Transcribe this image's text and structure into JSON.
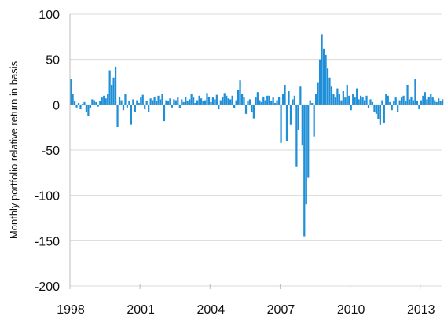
{
  "chart_data": {
    "type": "bar",
    "title": "",
    "xlabel": "",
    "ylabel": "Monthly portfolio relative return in basis",
    "ylim": [
      -200,
      100
    ],
    "yticks": [
      100,
      50,
      0,
      -50,
      -100,
      -150,
      -200
    ],
    "ytick_labels": [
      "100",
      "50",
      "0",
      "-50",
      "-100",
      "-150",
      "-200"
    ],
    "xlim": [
      1998.0,
      2013.95
    ],
    "xticks": [
      1998,
      2001,
      2004,
      2007,
      2010,
      2013
    ],
    "xtick_labels": [
      "1998",
      "2001",
      "2004",
      "2007",
      "2010",
      "2013"
    ],
    "grid": "horizontal",
    "legend": "none",
    "series": [
      {
        "color": "#1f8fd8",
        "start": "1998-01",
        "frequency": "monthly",
        "values": [
          28,
          12,
          4,
          -3,
          2,
          -5,
          1,
          3,
          -8,
          -12,
          -4,
          6,
          5,
          3,
          -2,
          4,
          8,
          10,
          7,
          12,
          38,
          22,
          30,
          42,
          -24,
          9,
          5,
          -6,
          12,
          -3,
          4,
          -22,
          6,
          -8,
          5,
          2,
          8,
          11,
          -5,
          4,
          -8,
          7,
          5,
          9,
          4,
          10,
          6,
          12,
          -18,
          5,
          4,
          7,
          -3,
          6,
          5,
          8,
          -4,
          6,
          3,
          9,
          4,
          6,
          12,
          8,
          2,
          5,
          10,
          7,
          4,
          5,
          13,
          9,
          3,
          8,
          6,
          11,
          -5,
          5,
          9,
          13,
          10,
          7,
          6,
          10,
          -4,
          5,
          16,
          27,
          12,
          8,
          -10,
          4,
          6,
          -8,
          -15,
          8,
          14,
          5,
          3,
          9,
          5,
          10,
          10,
          4,
          8,
          2,
          5,
          9,
          -42,
          12,
          22,
          -40,
          15,
          -22,
          6,
          10,
          -68,
          -28,
          20,
          -45,
          -145,
          -110,
          -80,
          5,
          2,
          -35,
          12,
          25,
          50,
          78,
          62,
          55,
          40,
          30,
          20,
          12,
          8,
          18,
          12,
          5,
          15,
          8,
          22,
          10,
          -6,
          12,
          8,
          18,
          6,
          10,
          8,
          5,
          10,
          -4,
          6,
          3,
          -8,
          -10,
          -16,
          -22,
          5,
          -20,
          12,
          10,
          3,
          -6,
          4,
          8,
          -8,
          5,
          8,
          10,
          4,
          22,
          6,
          9,
          5,
          28,
          4,
          -5,
          5,
          10,
          14,
          6,
          9,
          12,
          8,
          5,
          3,
          7,
          4,
          6
        ]
      }
    ]
  }
}
